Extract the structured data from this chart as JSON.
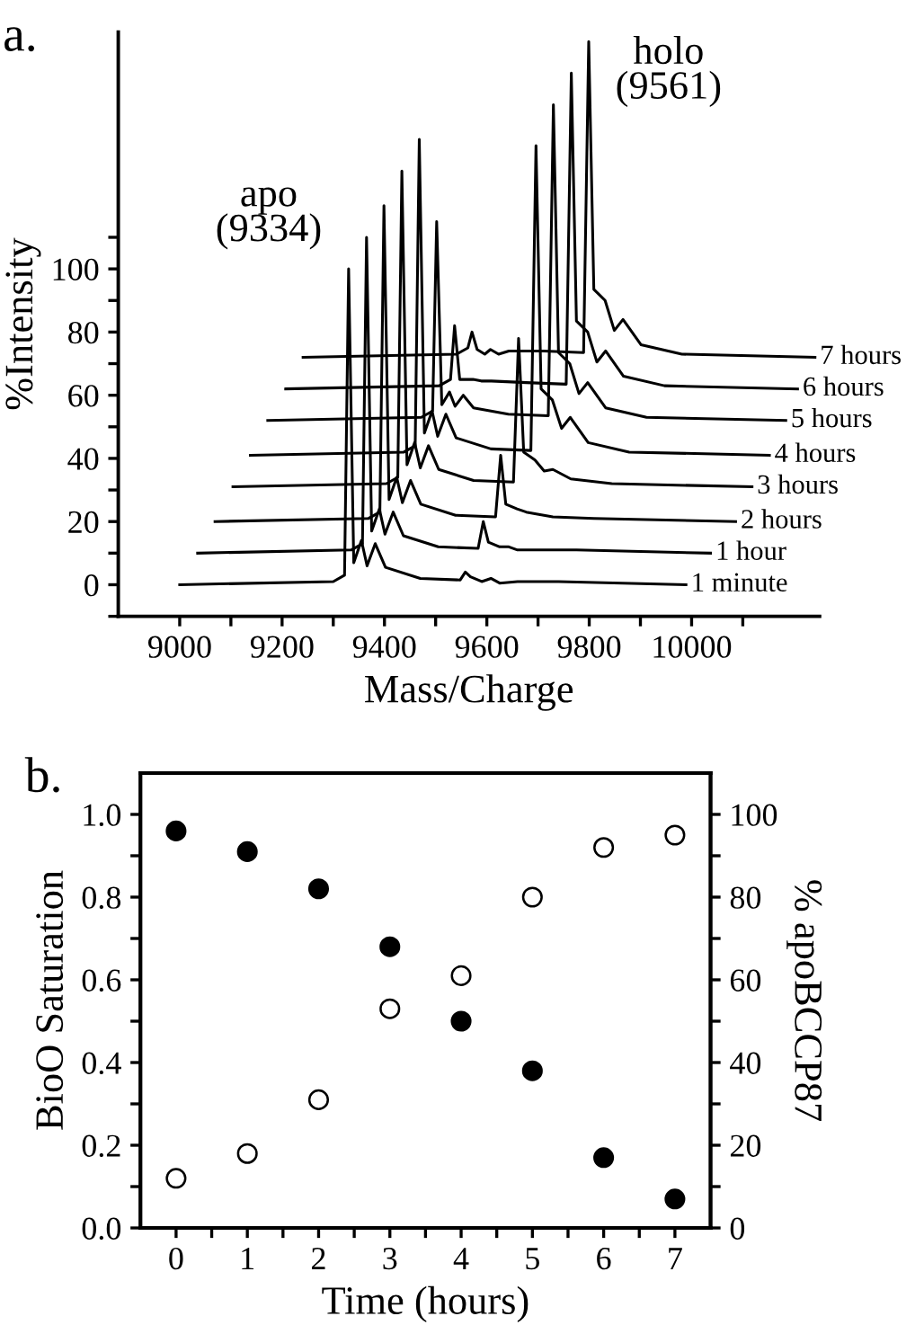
{
  "chart_data": [
    {
      "type": "line",
      "title": "a.",
      "xlabel": "Mass/Charge",
      "ylabel": "%Intensity",
      "xlim": [
        8880,
        10250
      ],
      "ylim": [
        -10,
        175
      ],
      "xticks": [
        9000,
        {
          "value": 9100,
          "label": null
        },
        9200,
        {
          "value": 9300,
          "label": null
        },
        9400,
        {
          "value": 9500,
          "label": null
        },
        9600,
        {
          "value": 9700,
          "label": null
        },
        9800,
        {
          "value": 9900,
          "label": null
        },
        10000,
        {
          "value": 10100,
          "label": null
        }
      ],
      "yticks": [
        {
          "value": -10,
          "label": null
        },
        0,
        {
          "value": 10,
          "label": null
        },
        20,
        {
          "value": 30,
          "label": null
        },
        40,
        {
          "value": 50,
          "label": null
        },
        60,
        {
          "value": 70,
          "label": null
        },
        80,
        {
          "value": 90,
          "label": null
        },
        100,
        {
          "value": 110,
          "label": null
        }
      ],
      "marker": "none",
      "line_style": "solid",
      "annotations": [
        {
          "text": "apo\n(9334)",
          "x": 9330,
          "y": 100
        },
        {
          "text": "holo\n(9561)",
          "x": 9799,
          "y": 172
        }
      ],
      "series": [
        {
          "name": "1 minute",
          "color": "#000000",
          "x": [
            9000,
            9300,
            9322,
            9330,
            9340,
            9355,
            9366,
            9382,
            9402,
            9470,
            9548,
            9558,
            9568,
            9590,
            9608,
            9625,
            9660,
            9740,
            9989
          ],
          "values": [
            0,
            1,
            3,
            100,
            7,
            14,
            6,
            13,
            5.5,
            2,
            1.5,
            4,
            2.5,
            1,
            2,
            0.5,
            1,
            1,
            0
          ]
        },
        {
          "name": "1 hour",
          "color": "#000000",
          "x": [
            9035,
            9335,
            9357,
            9365,
            9375,
            9390,
            9401,
            9417,
            9437,
            9505,
            9583,
            9593,
            9603,
            9625,
            9643,
            9660,
            9695,
            9775,
            10037
          ],
          "values": [
            10,
            11,
            13,
            110,
            17,
            24,
            16,
            23,
            15.5,
            12,
            11.5,
            20,
            13.5,
            12,
            12,
            11,
            11,
            11,
            10
          ]
        },
        {
          "name": "2 hours",
          "color": "#000000",
          "x": [
            9069,
            9369,
            9391,
            9399,
            9409,
            9424,
            9435,
            9451,
            9471,
            9539,
            9617,
            9627,
            9637,
            9659,
            9677,
            9694,
            9729,
            9809,
            10086
          ],
          "values": [
            20,
            21,
            23,
            120,
            27,
            34,
            26,
            33,
            25.5,
            22,
            21.5,
            41,
            25.5,
            24,
            23,
            22.5,
            21.5,
            21,
            20
          ]
        },
        {
          "name": "3 hours",
          "color": "#000000",
          "x": [
            9104,
            9404,
            9426,
            9434,
            9444,
            9459,
            9470,
            9486,
            9506,
            9574,
            9652,
            9662,
            9672,
            9694,
            9712,
            9729,
            9764,
            9844,
            10118
          ],
          "values": [
            31,
            32,
            34,
            131,
            38,
            45,
            37,
            44,
            36.5,
            33,
            32.5,
            78,
            42,
            39.5,
            36,
            36.5,
            33.5,
            32,
            31
          ]
        },
        {
          "name": "4 hours",
          "color": "#000000",
          "x": [
            9138,
            9438,
            9460,
            9468,
            9478,
            9493,
            9504,
            9520,
            9540,
            9608,
            9686,
            9696,
            9706,
            9728,
            9746,
            9763,
            9798,
            9878,
            10152
          ],
          "values": [
            41,
            42,
            44,
            141,
            48,
            55,
            47,
            54,
            46.5,
            43,
            42.5,
            139,
            62,
            58.5,
            49.5,
            53,
            45,
            42,
            41
          ]
        },
        {
          "name": "5 hours",
          "color": "#000000",
          "x": [
            9172,
            9472,
            9494,
            9502,
            9512,
            9527,
            9538,
            9554,
            9574,
            9642,
            9720,
            9730,
            9740,
            9762,
            9780,
            9797,
            9832,
            9912,
            10184
          ],
          "values": [
            52,
            53,
            55,
            115,
            57,
            61,
            56.5,
            60,
            56,
            54,
            53.5,
            152,
            73.5,
            70,
            60.5,
            64,
            56,
            53,
            52
          ]
        },
        {
          "name": "6 hours",
          "color": "#000000",
          "x": [
            9207,
            9507,
            9529,
            9537,
            9547,
            9562,
            9573,
            9589,
            9609,
            9677,
            9755,
            9765,
            9775,
            9797,
            9815,
            9832,
            9867,
            9947,
            10207
          ],
          "values": [
            62,
            63,
            65,
            82,
            65,
            65,
            65,
            64.5,
            64.5,
            64,
            63.5,
            162,
            83.5,
            80,
            70.5,
            74,
            66,
            63,
            62
          ]
        },
        {
          "name": "7 hours",
          "color": "#000000",
          "x": [
            9241,
            9541,
            9563,
            9571,
            9581,
            9596,
            9607,
            9623,
            9643,
            9711,
            9789,
            9799,
            9809,
            9831,
            9849,
            9866,
            9901,
            9981,
            10241
          ],
          "values": [
            72,
            73,
            75,
            80,
            74.5,
            73,
            74.5,
            73,
            74,
            74,
            73.5,
            172,
            93.5,
            90,
            80.5,
            84,
            76,
            73,
            72
          ]
        }
      ]
    },
    {
      "type": "scatter",
      "title": "b.",
      "xlabel": "Time (hours)",
      "ylabel": "BioO Saturation",
      "y2label": "% apoBCCP87",
      "x": [
        0,
        1,
        2,
        3,
        4,
        5,
        6,
        7
      ],
      "xlim": [
        -0.5,
        7.5
      ],
      "xticks": [
        0,
        {
          "value": 0.5,
          "label": null
        },
        1,
        {
          "value": 1.5,
          "label": null
        },
        2,
        {
          "value": 2.5,
          "label": null
        },
        3,
        {
          "value": 3.5,
          "label": null
        },
        4,
        {
          "value": 4.5,
          "label": null
        },
        5,
        {
          "value": 5.5,
          "label": null
        },
        6,
        {
          "value": 6.5,
          "label": null
        },
        7
      ],
      "ylim": [
        0,
        1.1
      ],
      "yticks": [
        {
          "value": 0,
          "label": "0.0"
        },
        {
          "value": 0.1,
          "label": null
        },
        {
          "value": 0.2,
          "label": "0.2"
        },
        {
          "value": 0.3,
          "label": null
        },
        {
          "value": 0.4,
          "label": "0.4"
        },
        {
          "value": 0.5,
          "label": null
        },
        {
          "value": 0.6,
          "label": "0.6"
        },
        {
          "value": 0.7,
          "label": null
        },
        {
          "value": 0.8,
          "label": "0.8"
        },
        {
          "value": 0.9,
          "label": null
        },
        {
          "value": 1.0,
          "label": "1.0"
        }
      ],
      "y2lim": [
        0,
        110
      ],
      "y2ticks": [
        0,
        {
          "value": 10,
          "label": null
        },
        20,
        {
          "value": 30,
          "label": null
        },
        40,
        {
          "value": 50,
          "label": null
        },
        60,
        {
          "value": 70,
          "label": null
        },
        80,
        {
          "value": 90,
          "label": null
        },
        100
      ],
      "marker": "circle",
      "series": [
        {
          "color": "#000000",
          "values": [
            0.96,
            0.91,
            0.82,
            0.68,
            0.5,
            0.38,
            0.17,
            0.07
          ]
        },
        {
          "color": "#ffffff",
          "axis": "y2",
          "values": [
            12,
            18,
            31,
            53,
            61,
            80,
            92,
            95
          ]
        }
      ]
    }
  ]
}
